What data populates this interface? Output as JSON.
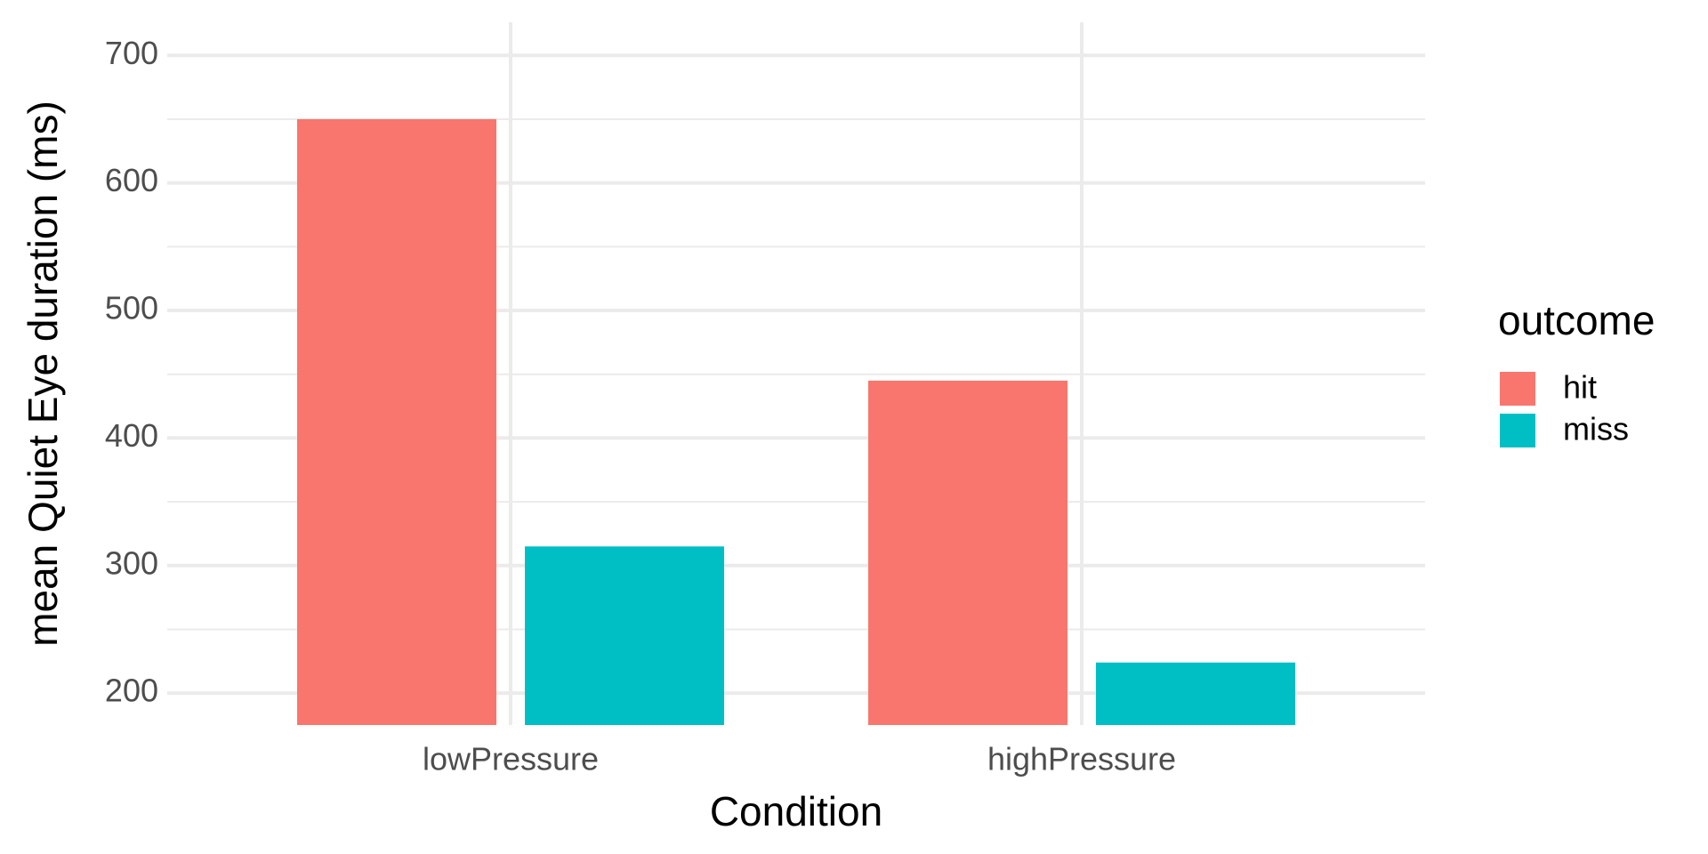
{
  "chart_data": {
    "type": "bar",
    "x_label": "Condition",
    "y_label": "mean Quiet Eye duration (ms)",
    "categories": [
      "lowPressure",
      "highPressure"
    ],
    "series": [
      {
        "name": "hit",
        "color": "#f8766d",
        "values": [
          650,
          445
        ]
      },
      {
        "name": "miss",
        "color": "#00bfc4",
        "values": [
          315,
          224
        ]
      }
    ],
    "ylim": [
      175,
      726
    ],
    "yticks": [
      200,
      300,
      400,
      500,
      600,
      700
    ],
    "yminor": [
      250,
      350,
      450,
      550,
      650
    ],
    "grid": true,
    "legend_title": "outcome",
    "legend_position": "right"
  }
}
